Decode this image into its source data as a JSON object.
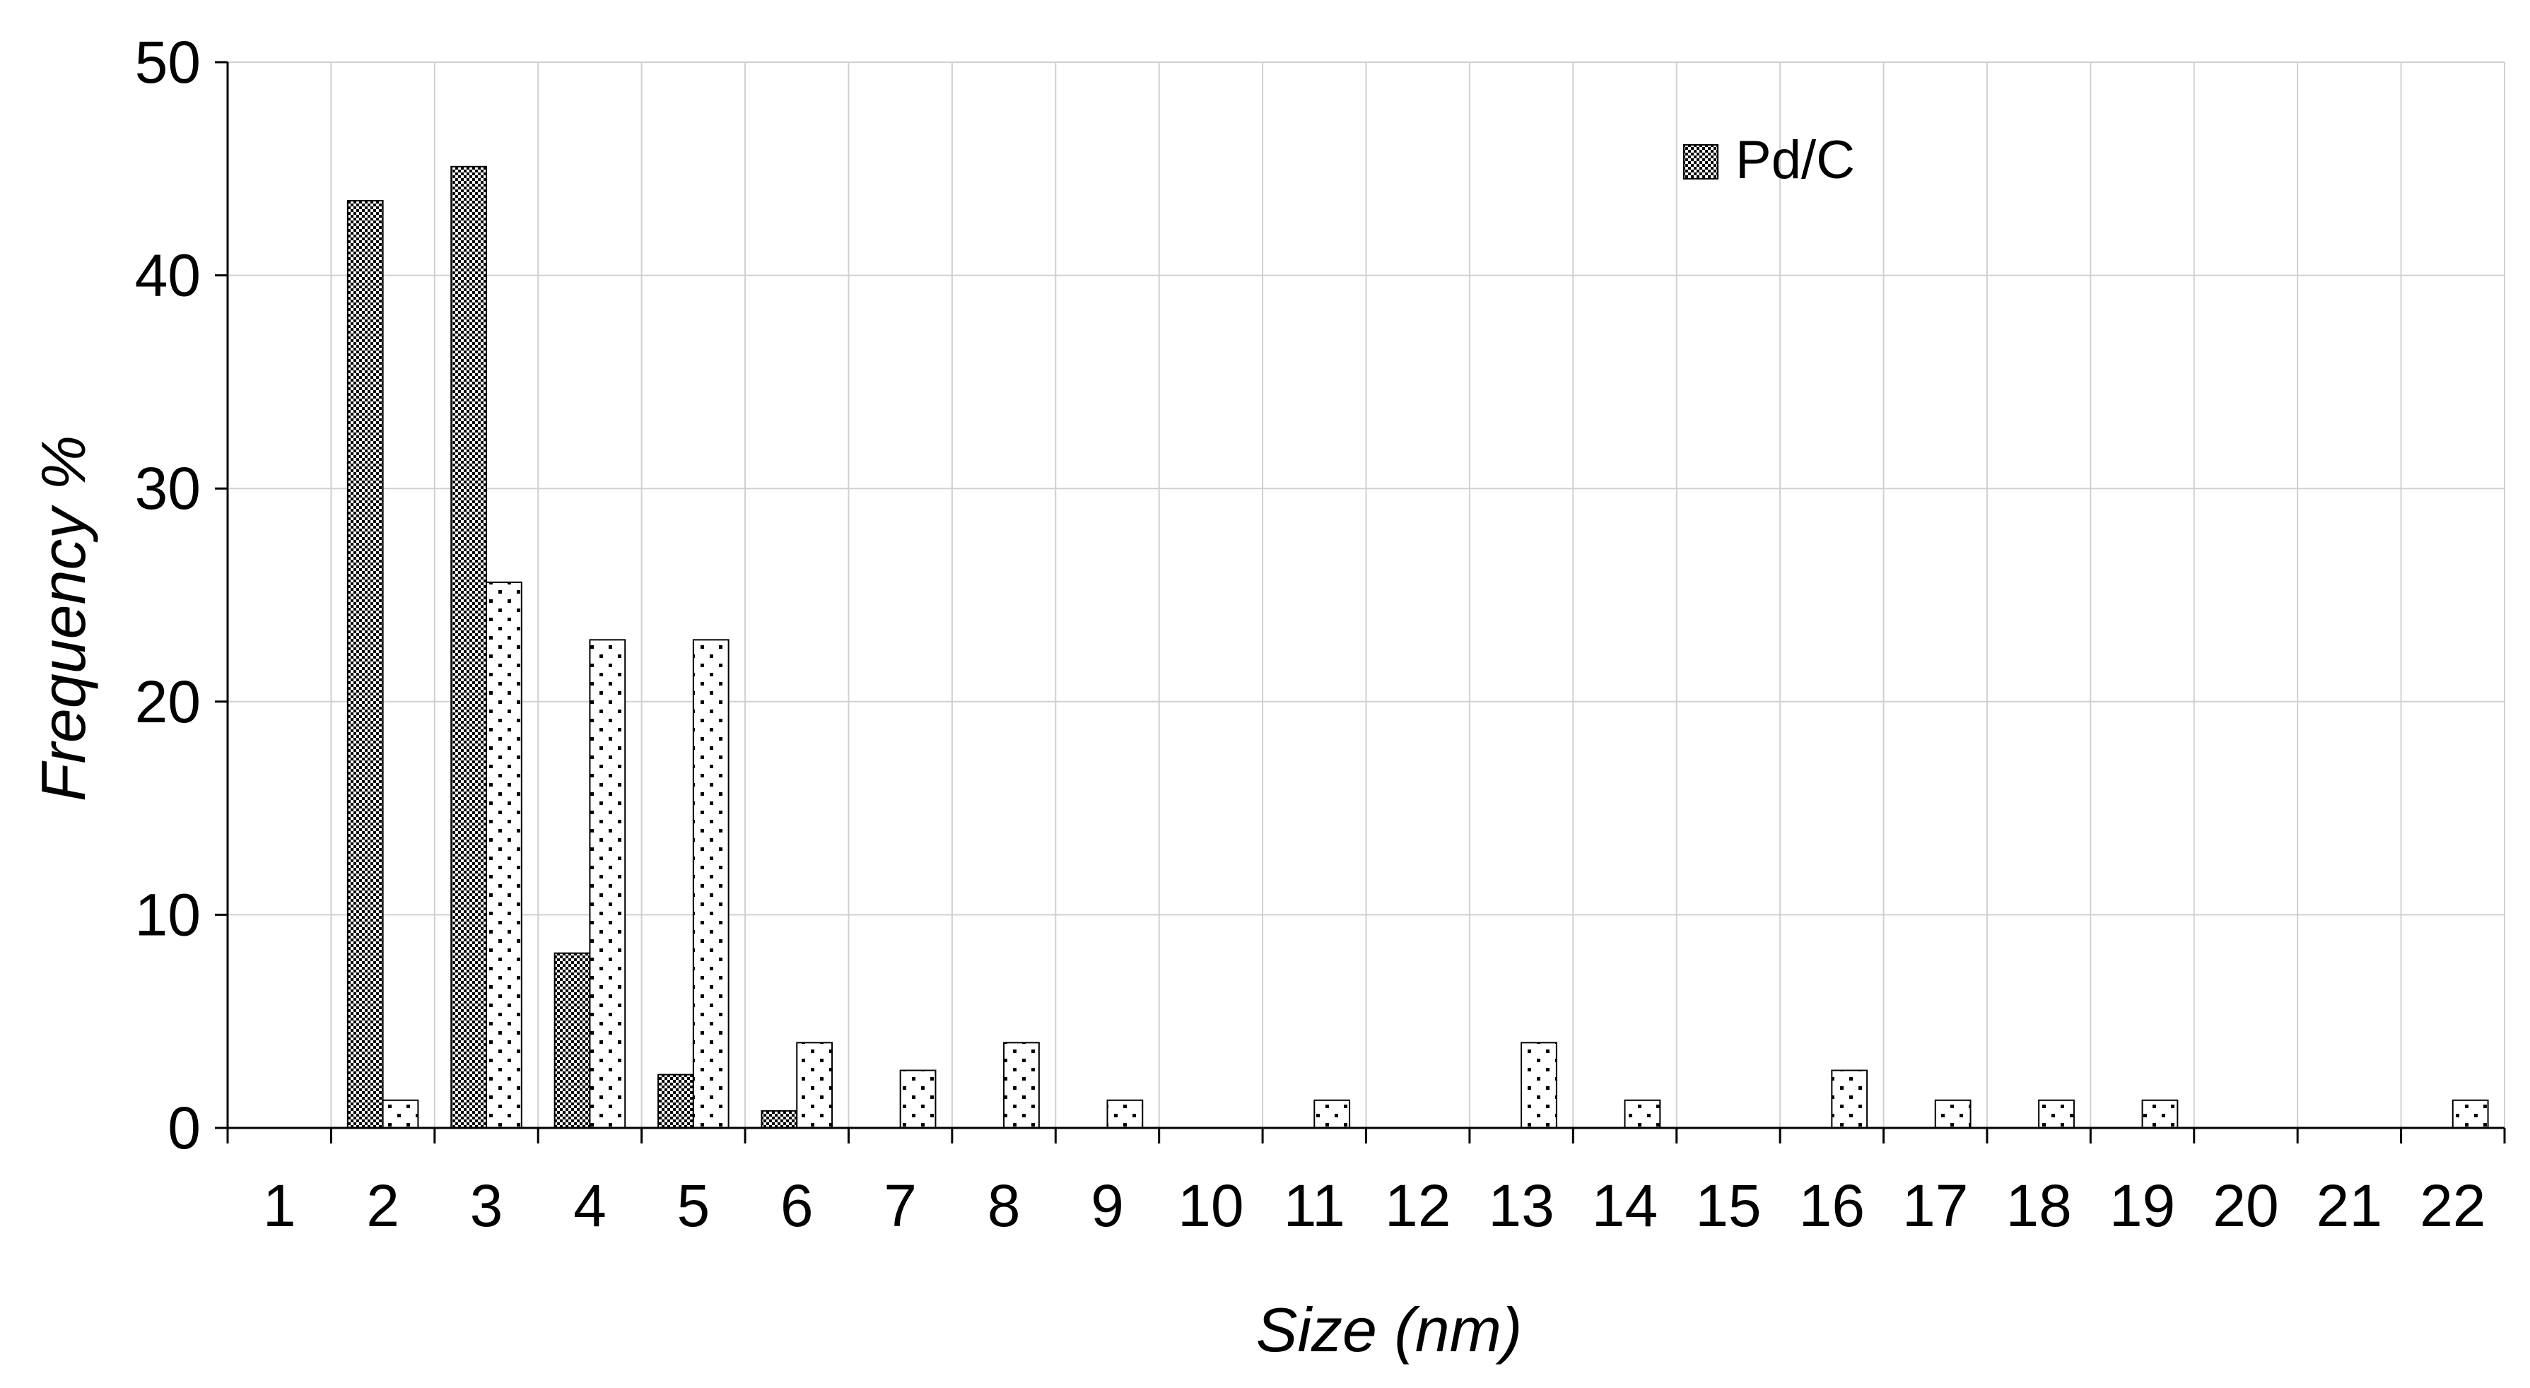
{
  "chart_data": {
    "type": "bar",
    "title": "",
    "xlabel": "Size (nm)",
    "ylabel": "Frequency %",
    "ylim": [
      0,
      50
    ],
    "yticks": [
      0,
      10,
      20,
      30,
      40,
      50
    ],
    "grid": true,
    "legend_position": "top-right",
    "categories": [
      "1",
      "2",
      "3",
      "4",
      "5",
      "6",
      "7",
      "8",
      "9",
      "10",
      "11",
      "12",
      "13",
      "14",
      "15",
      "16",
      "17",
      "18",
      "19",
      "20",
      "21",
      "22"
    ],
    "series": [
      {
        "name": "Pd/C",
        "pattern": "checker",
        "in_legend": true,
        "values": [
          0,
          43.5,
          45.1,
          8.2,
          2.5,
          0.8,
          0,
          0,
          0,
          0,
          0,
          0,
          0,
          0,
          0,
          0,
          0,
          0,
          0,
          0,
          0,
          0
        ]
      },
      {
        "name": "",
        "pattern": "dots",
        "in_legend": false,
        "values": [
          0,
          1.3,
          25.6,
          22.9,
          22.9,
          4.0,
          2.7,
          4.0,
          1.3,
          0,
          1.3,
          0,
          4.0,
          1.3,
          0,
          2.7,
          1.3,
          1.3,
          1.3,
          0,
          0,
          1.3
        ]
      }
    ]
  }
}
